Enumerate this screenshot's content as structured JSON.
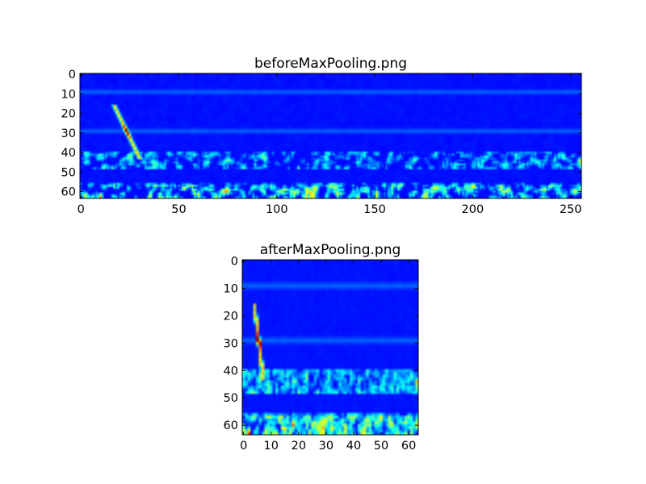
{
  "chart_data": [
    {
      "type": "heatmap",
      "title": "beforeMaxPooling.png",
      "colormap": "jet",
      "shape": {
        "rows": 64,
        "cols": 256
      },
      "xlim": [
        -0.5,
        255.5
      ],
      "ylim": [
        63.5,
        -0.5
      ],
      "xticks": [
        "0",
        "50",
        "100",
        "150",
        "200",
        "250"
      ],
      "yticks": [
        "0",
        "10",
        "20",
        "30",
        "40",
        "50",
        "60"
      ],
      "features": {
        "diagonal_streak": {
          "from": [
            17,
            16
          ],
          "to": [
            30,
            43
          ],
          "peak": [
            24,
            29
          ]
        },
        "horizontal_lines_y": [
          9,
          29
        ],
        "noise_bands_y": [
          [
            40,
            48
          ],
          [
            56,
            64
          ]
        ],
        "bright_spots": [
          [
            118,
            61
          ],
          [
            255,
            44
          ]
        ]
      }
    },
    {
      "type": "heatmap",
      "title": "afterMaxPooling.png",
      "colormap": "jet",
      "shape": {
        "rows": 64,
        "cols": 64
      },
      "xlim": [
        -0.5,
        63.5
      ],
      "ylim": [
        63.5,
        -0.5
      ],
      "xticks": [
        "0",
        "10",
        "20",
        "30",
        "40",
        "50",
        "60"
      ],
      "yticks": [
        "0",
        "10",
        "20",
        "30",
        "40",
        "50",
        "60"
      ],
      "pooling": "max over 4 columns"
    }
  ]
}
